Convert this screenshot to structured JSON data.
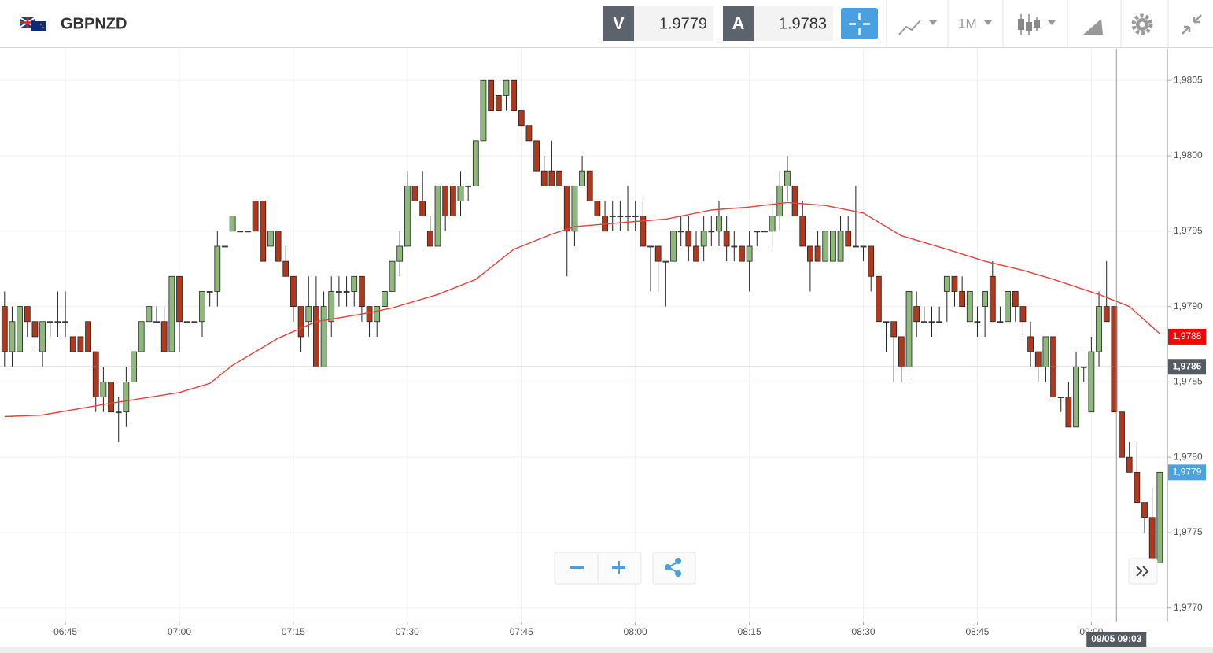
{
  "header": {
    "symbol": "GBPNZD",
    "bid_label": "V",
    "bid": "1.9779",
    "ask_label": "A",
    "ask": "1.9783",
    "interval": "1M"
  },
  "chart_data": {
    "type": "candlestick",
    "ohlc": [
      [
        1.979,
        1.9791,
        1.9786,
        1.9787
      ],
      [
        1.9787,
        1.979,
        1.9786,
        1.9789
      ],
      [
        1.9787,
        1.979,
        1.9787,
        1.979
      ],
      [
        1.979,
        1.979,
        1.9788,
        1.9789
      ],
      [
        1.9789,
        1.9789,
        1.9787,
        1.9788
      ],
      [
        1.9787,
        1.9789,
        1.9786,
        1.9789
      ],
      [
        1.9789,
        1.9789,
        1.9788,
        1.9789
      ],
      [
        1.9789,
        1.9791,
        1.9788,
        1.9789
      ],
      [
        1.9789,
        1.9791,
        1.9788,
        1.9789
      ],
      [
        1.9788,
        1.9788,
        1.9787,
        1.9787
      ],
      [
        1.9788,
        1.9788,
        1.9787,
        1.9787
      ],
      [
        1.9789,
        1.9789,
        1.9787,
        1.9787
      ],
      [
        1.9787,
        1.9787,
        1.9783,
        1.9784
      ],
      [
        1.9784,
        1.9786,
        1.9783,
        1.9785
      ],
      [
        1.9785,
        1.9785,
        1.9783,
        1.9783
      ],
      [
        1.9783,
        1.9784,
        1.9781,
        1.9783
      ],
      [
        1.9783,
        1.9786,
        1.9782,
        1.9785
      ],
      [
        1.9785,
        1.9787,
        1.9785,
        1.9787
      ],
      [
        1.9787,
        1.9789,
        1.9787,
        1.9789
      ],
      [
        1.9789,
        1.979,
        1.9789,
        1.979
      ],
      [
        1.9789,
        1.979,
        1.9789,
        1.9789
      ],
      [
        1.9789,
        1.979,
        1.9787,
        1.9787
      ],
      [
        1.9787,
        1.9792,
        1.9787,
        1.9792
      ],
      [
        1.9792,
        1.9792,
        1.9787,
        1.9789
      ],
      [
        1.9789,
        1.9789,
        1.9789,
        1.9789
      ],
      [
        1.9789,
        1.9789,
        1.9789,
        1.9789
      ],
      [
        1.9789,
        1.9791,
        1.9788,
        1.9791
      ],
      [
        1.9791,
        1.9791,
        1.979,
        1.9791
      ],
      [
        1.9791,
        1.9795,
        1.979,
        1.9794
      ],
      [
        1.9794,
        1.9794,
        1.9794,
        1.9794
      ],
      [
        1.9795,
        1.9796,
        1.9795,
        1.9796
      ],
      [
        1.9795,
        1.9795,
        1.9795,
        1.9795
      ],
      [
        1.9795,
        1.9795,
        1.9795,
        1.9795
      ],
      [
        1.9797,
        1.9797,
        1.9795,
        1.9795
      ],
      [
        1.9797,
        1.9797,
        1.9793,
        1.9793
      ],
      [
        1.9794,
        1.9795,
        1.9794,
        1.9795
      ],
      [
        1.9795,
        1.9795,
        1.9793,
        1.9793
      ],
      [
        1.9793,
        1.9794,
        1.9792,
        1.9792
      ],
      [
        1.9792,
        1.9792,
        1.9789,
        1.979
      ],
      [
        1.979,
        1.979,
        1.9787,
        1.9788
      ],
      [
        1.9789,
        1.9792,
        1.9788,
        1.979
      ],
      [
        1.979,
        1.9792,
        1.9786,
        1.9786
      ],
      [
        1.9786,
        1.9791,
        1.9786,
        1.979
      ],
      [
        1.9789,
        1.9792,
        1.9788,
        1.9791
      ],
      [
        1.9791,
        1.9792,
        1.979,
        1.9791
      ],
      [
        1.9791,
        1.9792,
        1.979,
        1.9791
      ],
      [
        1.9791,
        1.9792,
        1.979,
        1.9792
      ],
      [
        1.9792,
        1.9792,
        1.9789,
        1.979
      ],
      [
        1.979,
        1.979,
        1.9788,
        1.9789
      ],
      [
        1.9789,
        1.979,
        1.9788,
        1.979
      ],
      [
        1.979,
        1.9791,
        1.979,
        1.9791
      ],
      [
        1.9791,
        1.9793,
        1.9791,
        1.9793
      ],
      [
        1.9793,
        1.9795,
        1.9792,
        1.9794
      ],
      [
        1.9794,
        1.9799,
        1.9794,
        1.9798
      ],
      [
        1.9798,
        1.9798,
        1.9796,
        1.9797
      ],
      [
        1.9797,
        1.9799,
        1.9796,
        1.9796
      ],
      [
        1.9795,
        1.9796,
        1.9794,
        1.9794
      ],
      [
        1.9794,
        1.9798,
        1.9794,
        1.9798
      ],
      [
        1.9798,
        1.9798,
        1.9795,
        1.9796
      ],
      [
        1.9798,
        1.9798,
        1.9796,
        1.9796
      ],
      [
        1.9797,
        1.9799,
        1.9796,
        1.9798
      ],
      [
        1.9798,
        1.9798,
        1.9797,
        1.9798
      ],
      [
        1.9798,
        1.9801,
        1.9798,
        1.9801
      ],
      [
        1.9801,
        1.9805,
        1.9801,
        1.9805
      ],
      [
        1.9805,
        1.9805,
        1.9803,
        1.9803
      ],
      [
        1.9804,
        1.9804,
        1.9803,
        1.9803
      ],
      [
        1.9804,
        1.9805,
        1.9803,
        1.9805
      ],
      [
        1.9805,
        1.9805,
        1.9803,
        1.9803
      ],
      [
        1.9803,
        1.9803,
        1.9802,
        1.9802
      ],
      [
        1.9802,
        1.9802,
        1.9801,
        1.9801
      ],
      [
        1.9801,
        1.9801,
        1.9799,
        1.9799
      ],
      [
        1.9799,
        1.98,
        1.9798,
        1.9798
      ],
      [
        1.9799,
        1.9801,
        1.9798,
        1.9798
      ],
      [
        1.9799,
        1.9799,
        1.9798,
        1.9798
      ],
      [
        1.9798,
        1.9798,
        1.9792,
        1.9795
      ],
      [
        1.9795,
        1.9798,
        1.9794,
        1.9798
      ],
      [
        1.9798,
        1.98,
        1.9798,
        1.9799
      ],
      [
        1.9799,
        1.9799,
        1.9797,
        1.9797
      ],
      [
        1.9797,
        1.9797,
        1.9796,
        1.9796
      ],
      [
        1.9796,
        1.9797,
        1.9795,
        1.9795
      ],
      [
        1.9796,
        1.9797,
        1.9795,
        1.9796
      ],
      [
        1.9796,
        1.9797,
        1.9795,
        1.9796
      ],
      [
        1.9796,
        1.9798,
        1.9795,
        1.9796
      ],
      [
        1.9796,
        1.9797,
        1.9795,
        1.9796
      ],
      [
        1.9796,
        1.9797,
        1.9794,
        1.9794
      ],
      [
        1.9794,
        1.9794,
        1.9791,
        1.9794
      ],
      [
        1.9794,
        1.9794,
        1.9791,
        1.9793
      ],
      [
        1.9793,
        1.9793,
        1.979,
        1.9793
      ],
      [
        1.9793,
        1.9795,
        1.9793,
        1.9795
      ],
      [
        1.9795,
        1.9796,
        1.9794,
        1.9795
      ],
      [
        1.9795,
        1.9796,
        1.9793,
        1.9794
      ],
      [
        1.9794,
        1.9795,
        1.9793,
        1.9793
      ],
      [
        1.9794,
        1.9796,
        1.9793,
        1.9795
      ],
      [
        1.9795,
        1.9796,
        1.9794,
        1.9795
      ],
      [
        1.9795,
        1.9797,
        1.9794,
        1.9796
      ],
      [
        1.9795,
        1.9796,
        1.9793,
        1.9794
      ],
      [
        1.9794,
        1.9795,
        1.9793,
        1.9794
      ],
      [
        1.9794,
        1.9794,
        1.9793,
        1.9793
      ],
      [
        1.9793,
        1.9795,
        1.9791,
        1.9794
      ],
      [
        1.9795,
        1.9795,
        1.9794,
        1.9795
      ],
      [
        1.9795,
        1.9795,
        1.9795,
        1.9795
      ],
      [
        1.9795,
        1.9797,
        1.9794,
        1.9796
      ],
      [
        1.9796,
        1.9799,
        1.9795,
        1.9798
      ],
      [
        1.9798,
        1.98,
        1.9797,
        1.9799
      ],
      [
        1.9798,
        1.9798,
        1.9796,
        1.9796
      ],
      [
        1.9796,
        1.9797,
        1.9794,
        1.9794
      ],
      [
        1.9794,
        1.9794,
        1.9791,
        1.9793
      ],
      [
        1.9794,
        1.9795,
        1.9793,
        1.9793
      ],
      [
        1.9793,
        1.9795,
        1.9793,
        1.9795
      ],
      [
        1.9793,
        1.9795,
        1.9793,
        1.9795
      ],
      [
        1.9793,
        1.9796,
        1.9793,
        1.9795
      ],
      [
        1.9795,
        1.9796,
        1.9794,
        1.9794
      ],
      [
        1.9794,
        1.9798,
        1.9794,
        1.9794
      ],
      [
        1.9794,
        1.9794,
        1.9793,
        1.9794
      ],
      [
        1.9794,
        1.9794,
        1.9791,
        1.9792
      ],
      [
        1.9792,
        1.9792,
        1.9789,
        1.9789
      ],
      [
        1.9789,
        1.9789,
        1.9787,
        1.9789
      ],
      [
        1.9789,
        1.9789,
        1.9785,
        1.9788
      ],
      [
        1.9788,
        1.9788,
        1.9785,
        1.9786
      ],
      [
        1.9786,
        1.9791,
        1.9785,
        1.9791
      ],
      [
        1.979,
        1.9791,
        1.9788,
        1.9789
      ],
      [
        1.9789,
        1.979,
        1.9789,
        1.9789
      ],
      [
        1.9789,
        1.979,
        1.9788,
        1.9789
      ],
      [
        1.9789,
        1.979,
        1.9789,
        1.9789
      ],
      [
        1.9791,
        1.9792,
        1.9789,
        1.9792
      ],
      [
        1.9792,
        1.9792,
        1.979,
        1.9791
      ],
      [
        1.9791,
        1.9792,
        1.979,
        1.979
      ],
      [
        1.9789,
        1.9791,
        1.9789,
        1.9791
      ],
      [
        1.9789,
        1.979,
        1.9788,
        1.9789
      ],
      [
        1.979,
        1.9791,
        1.9788,
        1.9791
      ],
      [
        1.9792,
        1.9793,
        1.9789,
        1.9789
      ],
      [
        1.9789,
        1.979,
        1.9789,
        1.9789
      ],
      [
        1.9789,
        1.9791,
        1.9789,
        1.9791
      ],
      [
        1.9791,
        1.9791,
        1.9789,
        1.979
      ],
      [
        1.979,
        1.979,
        1.9788,
        1.9789
      ],
      [
        1.9788,
        1.9789,
        1.9786,
        1.9787
      ],
      [
        1.9787,
        1.9787,
        1.9785,
        1.9786
      ],
      [
        1.9786,
        1.9788,
        1.9785,
        1.9788
      ],
      [
        1.9788,
        1.9788,
        1.9784,
        1.9784
      ],
      [
        1.9784,
        1.9784,
        1.9783,
        1.9784
      ],
      [
        1.9784,
        1.9785,
        1.9782,
        1.9782
      ],
      [
        1.9782,
        1.9787,
        1.9782,
        1.9786
      ],
      [
        1.9786,
        1.9786,
        1.9785,
        1.9786
      ],
      [
        1.9783,
        1.9788,
        1.9783,
        1.9787
      ],
      [
        1.9787,
        1.9791,
        1.9786,
        1.979
      ],
      [
        1.979,
        1.9793,
        1.9789,
        1.9789
      ],
      [
        1.979,
        1.979,
        1.9783,
        1.9783
      ],
      [
        1.9783,
        1.9783,
        1.978,
        1.978
      ],
      [
        1.978,
        1.9781,
        1.9779,
        1.9779
      ],
      [
        1.9779,
        1.9781,
        1.9777,
        1.9777
      ],
      [
        1.9777,
        1.9777,
        1.9775,
        1.9776
      ],
      [
        1.9776,
        1.9778,
        1.9773,
        1.9773
      ],
      [
        1.9773,
        1.9779,
        1.9773,
        1.9779
      ]
    ],
    "up_color": "#8dba7c",
    "down_color": "#b0391d",
    "ma": {
      "color": "#e8403a",
      "x": [
        0,
        5,
        13,
        23,
        27,
        30,
        36,
        41,
        47,
        51,
        57,
        62,
        67,
        72,
        75,
        82,
        87,
        93,
        98,
        103,
        108,
        113,
        118,
        124,
        129,
        134,
        138,
        144,
        148,
        152
      ],
      "values": [
        1.97827,
        1.97828,
        1.97835,
        1.97843,
        1.97849,
        1.97861,
        1.97879,
        1.9789,
        1.97895,
        1.97899,
        1.97908,
        1.97918,
        1.97938,
        1.97948,
        1.97953,
        1.97956,
        1.97958,
        1.97964,
        1.97966,
        1.97969,
        1.97967,
        1.97962,
        1.97947,
        1.97938,
        1.9793,
        1.97924,
        1.97918,
        1.97908,
        1.979,
        1.97882
      ]
    },
    "xlim": [
      -0.6,
      153
    ],
    "xticks": [
      {
        "value": 8,
        "label": "06:45"
      },
      {
        "value": 23,
        "label": "07:00"
      },
      {
        "value": 38,
        "label": "07:15"
      },
      {
        "value": 53,
        "label": "07:30"
      },
      {
        "value": 68,
        "label": "07:45"
      },
      {
        "value": 83,
        "label": "08:00"
      },
      {
        "value": 98,
        "label": "08:15"
      },
      {
        "value": 113,
        "label": "08:30"
      },
      {
        "value": 128,
        "label": "08:45"
      },
      {
        "value": 143,
        "label": "09:00"
      }
    ],
    "ylim": [
      1.97691,
      1.98071
    ],
    "yticks": [
      {
        "value": 1.9805,
        "label": "1,9805"
      },
      {
        "value": 1.98,
        "label": "1,9800"
      },
      {
        "value": 1.9795,
        "label": "1,9795"
      },
      {
        "value": 1.979,
        "label": "1,9790"
      },
      {
        "value": 1.9785,
        "label": "1,9785"
      },
      {
        "value": 1.978,
        "label": "1,9780"
      },
      {
        "value": 1.9775,
        "label": "1,9775"
      },
      {
        "value": 1.977,
        "label": "1,9770"
      }
    ],
    "grid": true,
    "price_labels": [
      {
        "value": 1.9788,
        "label": "1,9788",
        "color": "#ff0000"
      },
      {
        "value": 1.9779,
        "label": "1,9779",
        "color": "#4aa3df"
      }
    ],
    "crosshair": {
      "x": 146.3,
      "x_label": "09/05 09:03",
      "y": 1.9786,
      "y_label": "1,9786",
      "color": "#555b63"
    }
  }
}
